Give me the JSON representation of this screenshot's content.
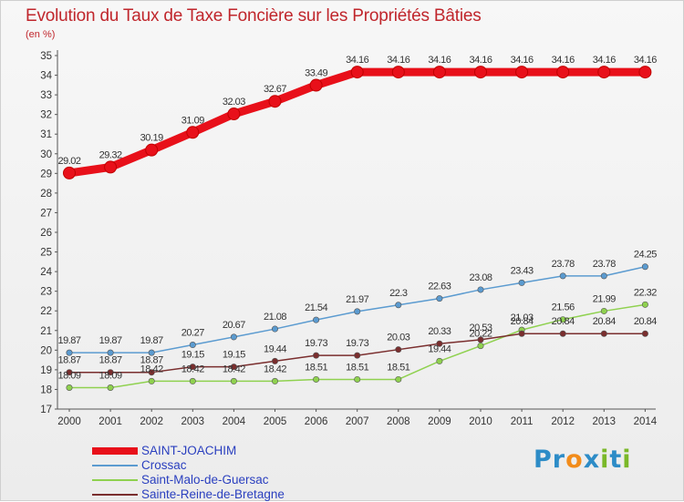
{
  "title": "Evolution du Taux de Taxe Foncière sur les Propriétés Bâties",
  "unit_label": "(en %)",
  "logo": {
    "text": "Proxiti",
    "colors": [
      "#2d8cc7",
      "#2d8cc7",
      "#f28c1b",
      "#2d8cc7",
      "#7ab829",
      "#2d8cc7",
      "#7ab829"
    ]
  },
  "chart_data": {
    "type": "line",
    "title": "Evolution du Taux de Taxe Foncière sur les Propriétés Bâties",
    "ylabel": "(en %)",
    "xlabel": "",
    "x": [
      "2000",
      "2001",
      "2002",
      "2003",
      "2004",
      "2005",
      "2006",
      "2007",
      "2008",
      "2009",
      "2010",
      "2011",
      "2012",
      "2013",
      "2014"
    ],
    "ylim": [
      17,
      35
    ],
    "yticks": [
      "17",
      "18",
      "19",
      "20",
      "21",
      "22",
      "23",
      "24",
      "25",
      "26",
      "27",
      "28",
      "29",
      "30",
      "31",
      "32",
      "33",
      "34",
      "35"
    ],
    "grid": false,
    "legend_position": "bottom-left",
    "series": [
      {
        "name": "SAINT-JOACHIM",
        "color": "#e8101a",
        "values": [
          29.02,
          29.32,
          30.19,
          31.09,
          32.03,
          32.67,
          33.49,
          34.16,
          34.16,
          34.16,
          34.16,
          34.16,
          34.16,
          34.16,
          34.16
        ],
        "labels": [
          "29.02",
          "29.32",
          "30.19",
          "31.09",
          "32.03",
          "32.67",
          "33.49",
          "34.16",
          "34.16",
          "34.16",
          "34.16",
          "34.16",
          "34.16",
          "34.16",
          "34.16"
        ]
      },
      {
        "name": "Crossac",
        "color": "#5b9bd0",
        "values": [
          19.87,
          19.87,
          19.87,
          20.27,
          20.67,
          21.08,
          21.54,
          21.97,
          22.3,
          22.63,
          23.08,
          23.43,
          23.78,
          23.78,
          24.25
        ],
        "labels": [
          "19.87",
          "19.87",
          "19.87",
          "20.27",
          "20.67",
          "21.08",
          "21.54",
          "21.97",
          "22.3",
          "22.63",
          "23.08",
          "23.43",
          "23.78",
          "23.78",
          "24.25"
        ]
      },
      {
        "name": "Saint-Malo-de-Guersac",
        "color": "#8fd14f",
        "values": [
          18.09,
          18.09,
          18.42,
          18.42,
          18.42,
          18.42,
          18.51,
          18.51,
          18.51,
          19.44,
          20.22,
          21.03,
          21.56,
          21.99,
          22.32
        ],
        "labels": [
          "18.09",
          "18.09",
          "18.42",
          "18.42",
          "18.42",
          "18.42",
          "18.51",
          "18.51",
          "18.51",
          "19.44",
          "20.22",
          "21.03",
          "21.56",
          "21.99",
          "22.32"
        ]
      },
      {
        "name": "Sainte-Reine-de-Bretagne",
        "color": "#7a2e2e",
        "values": [
          18.87,
          18.87,
          18.87,
          19.15,
          19.15,
          19.44,
          19.73,
          19.73,
          20.03,
          20.33,
          20.53,
          20.84,
          20.84,
          20.84,
          20.84
        ],
        "labels": [
          "18.87",
          "18.87",
          "18.87",
          "19.15",
          "19.15",
          "19.44",
          "19.73",
          "19.73",
          "20.03",
          "20.33",
          "20.53",
          "20.84",
          "20.84",
          "20.84",
          "20.84"
        ]
      }
    ]
  }
}
